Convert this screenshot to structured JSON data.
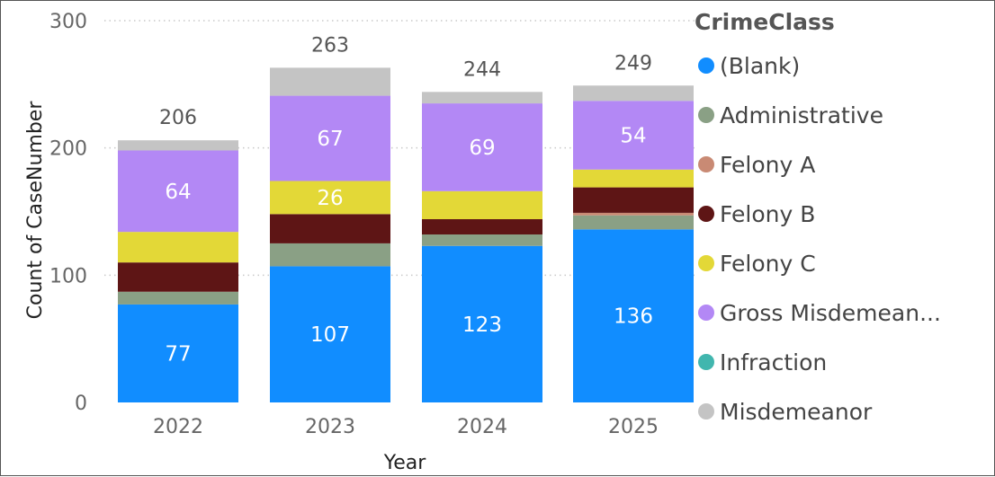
{
  "chart_data": {
    "type": "bar",
    "stacked": true,
    "xlabel": "Year",
    "ylabel": "Count of CaseNumber",
    "ylim": [
      0,
      300
    ],
    "yticks": [
      0,
      100,
      200,
      300
    ],
    "grid": true,
    "legend_title": "CrimeClass",
    "legend_position": "right",
    "categories": [
      "2022",
      "2023",
      "2024",
      "2025"
    ],
    "totals": [
      206,
      263,
      244,
      249
    ],
    "series": [
      {
        "name": "(Blank)",
        "color": "#118DFF",
        "values": [
          77,
          107,
          123,
          136
        ],
        "labeled": [
          true,
          true,
          true,
          true
        ]
      },
      {
        "name": "Administrative",
        "color": "#8AA085",
        "values": [
          10,
          18,
          9,
          11
        ],
        "labeled": [
          false,
          false,
          false,
          false
        ]
      },
      {
        "name": "Felony A",
        "color": "#C98A74",
        "values": [
          0,
          0,
          0,
          2
        ],
        "labeled": [
          false,
          false,
          false,
          false
        ]
      },
      {
        "name": "Felony B",
        "color": "#5E1515",
        "values": [
          23,
          23,
          12,
          20
        ],
        "labeled": [
          false,
          false,
          false,
          false
        ]
      },
      {
        "name": "Felony C",
        "color": "#E3D837",
        "values": [
          24,
          26,
          22,
          14
        ],
        "labeled": [
          false,
          true,
          false,
          false
        ]
      },
      {
        "name": "Gross Misdemean...",
        "color": "#B388F5",
        "values": [
          64,
          67,
          69,
          54
        ],
        "labeled": [
          true,
          true,
          true,
          true
        ]
      },
      {
        "name": "Infraction",
        "color": "#41B6AE",
        "values": [
          0,
          0,
          0,
          0
        ],
        "labeled": [
          false,
          false,
          false,
          false
        ]
      },
      {
        "name": "Misdemeanor",
        "color": "#C4C4C4",
        "values": [
          8,
          22,
          9,
          12
        ],
        "labeled": [
          false,
          false,
          false,
          false
        ]
      }
    ]
  }
}
